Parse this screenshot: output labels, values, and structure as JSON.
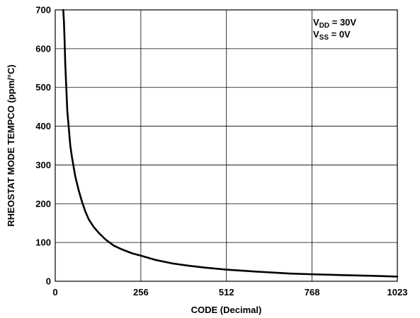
{
  "chart_data": {
    "type": "line",
    "title": "",
    "xlabel": "CODE (Decimal)",
    "ylabel": "RHEOSTAT MODE TEMPCO (ppm/°C)",
    "xlim": [
      0,
      1023
    ],
    "ylim": [
      0,
      700
    ],
    "xticks": [
      0,
      256,
      512,
      768,
      1023
    ],
    "yticks": [
      0,
      100,
      200,
      300,
      400,
      500,
      600,
      700
    ],
    "grid": true,
    "legend": {
      "placement": "top-right",
      "entries": [
        {
          "main": "V",
          "sub": "DD",
          "rest": " = 30V"
        },
        {
          "main": "V",
          "sub": "SS",
          "rest": " = 0V"
        }
      ]
    },
    "series": [
      {
        "x": [
          24,
          26,
          28,
          30,
          33,
          36,
          40,
          45,
          50,
          55,
          60,
          70,
          80,
          90,
          100,
          115,
          130,
          150,
          175,
          200,
          230,
          256,
          300,
          350,
          400,
          450,
          512,
          600,
          700,
          768,
          850,
          950,
          1023
        ],
        "y": [
          700,
          670,
          620,
          560,
          500,
          440,
          400,
          350,
          320,
          295,
          270,
          235,
          205,
          180,
          160,
          140,
          125,
          108,
          92,
          82,
          72,
          66,
          55,
          46,
          40,
          35,
          30,
          25,
          20,
          18,
          16,
          14,
          12
        ]
      }
    ]
  }
}
